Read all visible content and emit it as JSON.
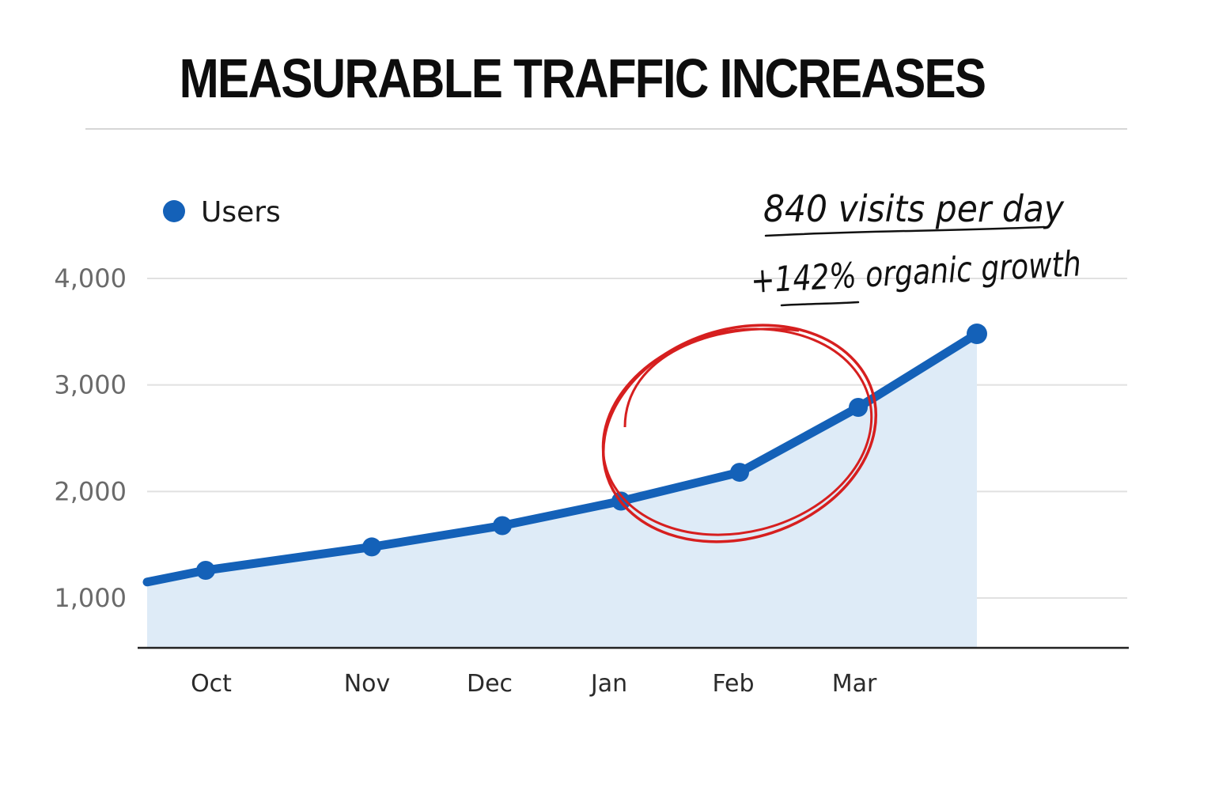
{
  "chart_data": {
    "type": "area",
    "title": "MEASURABLE TRAFFIC INCREASES",
    "series": [
      {
        "name": "Users",
        "color": "#1461b8",
        "x": [
          0.5,
          1.9,
          3.0,
          4.0,
          5.0,
          6.0,
          7.0
        ],
        "values": [
          1260,
          1480,
          1680,
          1910,
          2180,
          2790,
          3480
        ],
        "line_start_value": 1150
      }
    ],
    "categories": [
      "Oct",
      "Nov",
      "Dec",
      "Jan",
      "Feb",
      "Mar"
    ],
    "yticks": [
      {
        "value": 1000,
        "label": "1,000"
      },
      {
        "value": 2000,
        "label": "2,000"
      },
      {
        "value": 3000,
        "label": "3,000"
      },
      {
        "value": 4000,
        "label": "4,000"
      }
    ],
    "ylim": [
      540,
      4000
    ],
    "grid": true,
    "legend_position": "top-left",
    "fill_color": "#deebf7",
    "highlight_color": "#d61f1f",
    "annotations": [
      {
        "text": "840 visits per day"
      },
      {
        "text": "+142% organic growth"
      }
    ],
    "xlabel": "",
    "ylabel": ""
  }
}
